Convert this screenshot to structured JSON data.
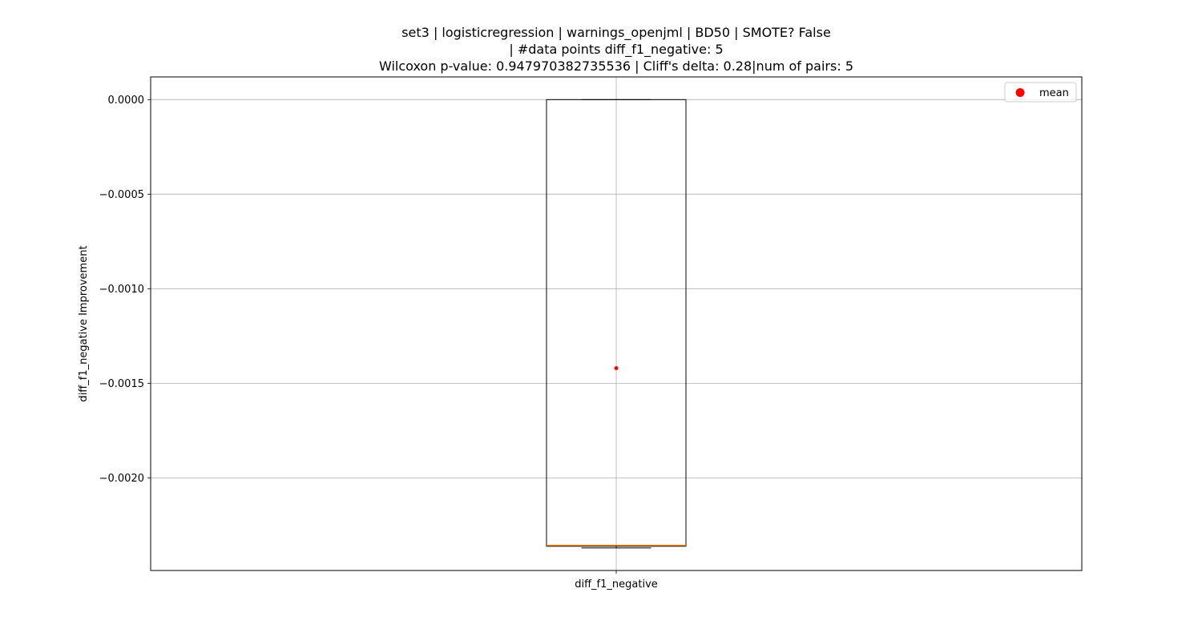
{
  "chart_data": {
    "type": "box",
    "title": [
      "set3 | logisticregression | warnings_openjml | BD50 | SMOTE? False",
      "| #data points diff_f1_negative: 5",
      "Wilcoxon p-value: 0.947970382735536 | Cliff's delta: 0.28|num of pairs: 5"
    ],
    "xlabel": "",
    "ylabel": "diff_f1_negative Improvement",
    "categories": [
      "diff_f1_negative"
    ],
    "ylim": [
      -0.00249,
      0.00012
    ],
    "yticks": [
      0.0,
      -0.0005,
      -0.001,
      -0.0015,
      -0.002
    ],
    "ytick_labels": [
      "0.0000",
      "−0.0005",
      "−0.0010",
      "−0.0015",
      "−0.0020"
    ],
    "grid": true,
    "legend": {
      "position": "top-right",
      "entries": [
        {
          "label": "mean",
          "color": "#ff0000",
          "marker": "circle"
        }
      ]
    },
    "boxes": [
      {
        "category": "diff_f1_negative",
        "whisker_low": -0.002371,
        "q1": -0.002362,
        "median": -0.002357,
        "q3": 0.0,
        "whisker_high": 0.0,
        "mean": -0.00142
      }
    ],
    "colors": {
      "box": "#000000",
      "median": "#ff7f0e",
      "mean": "#ff0000",
      "grid": "#b0b0b0"
    }
  }
}
